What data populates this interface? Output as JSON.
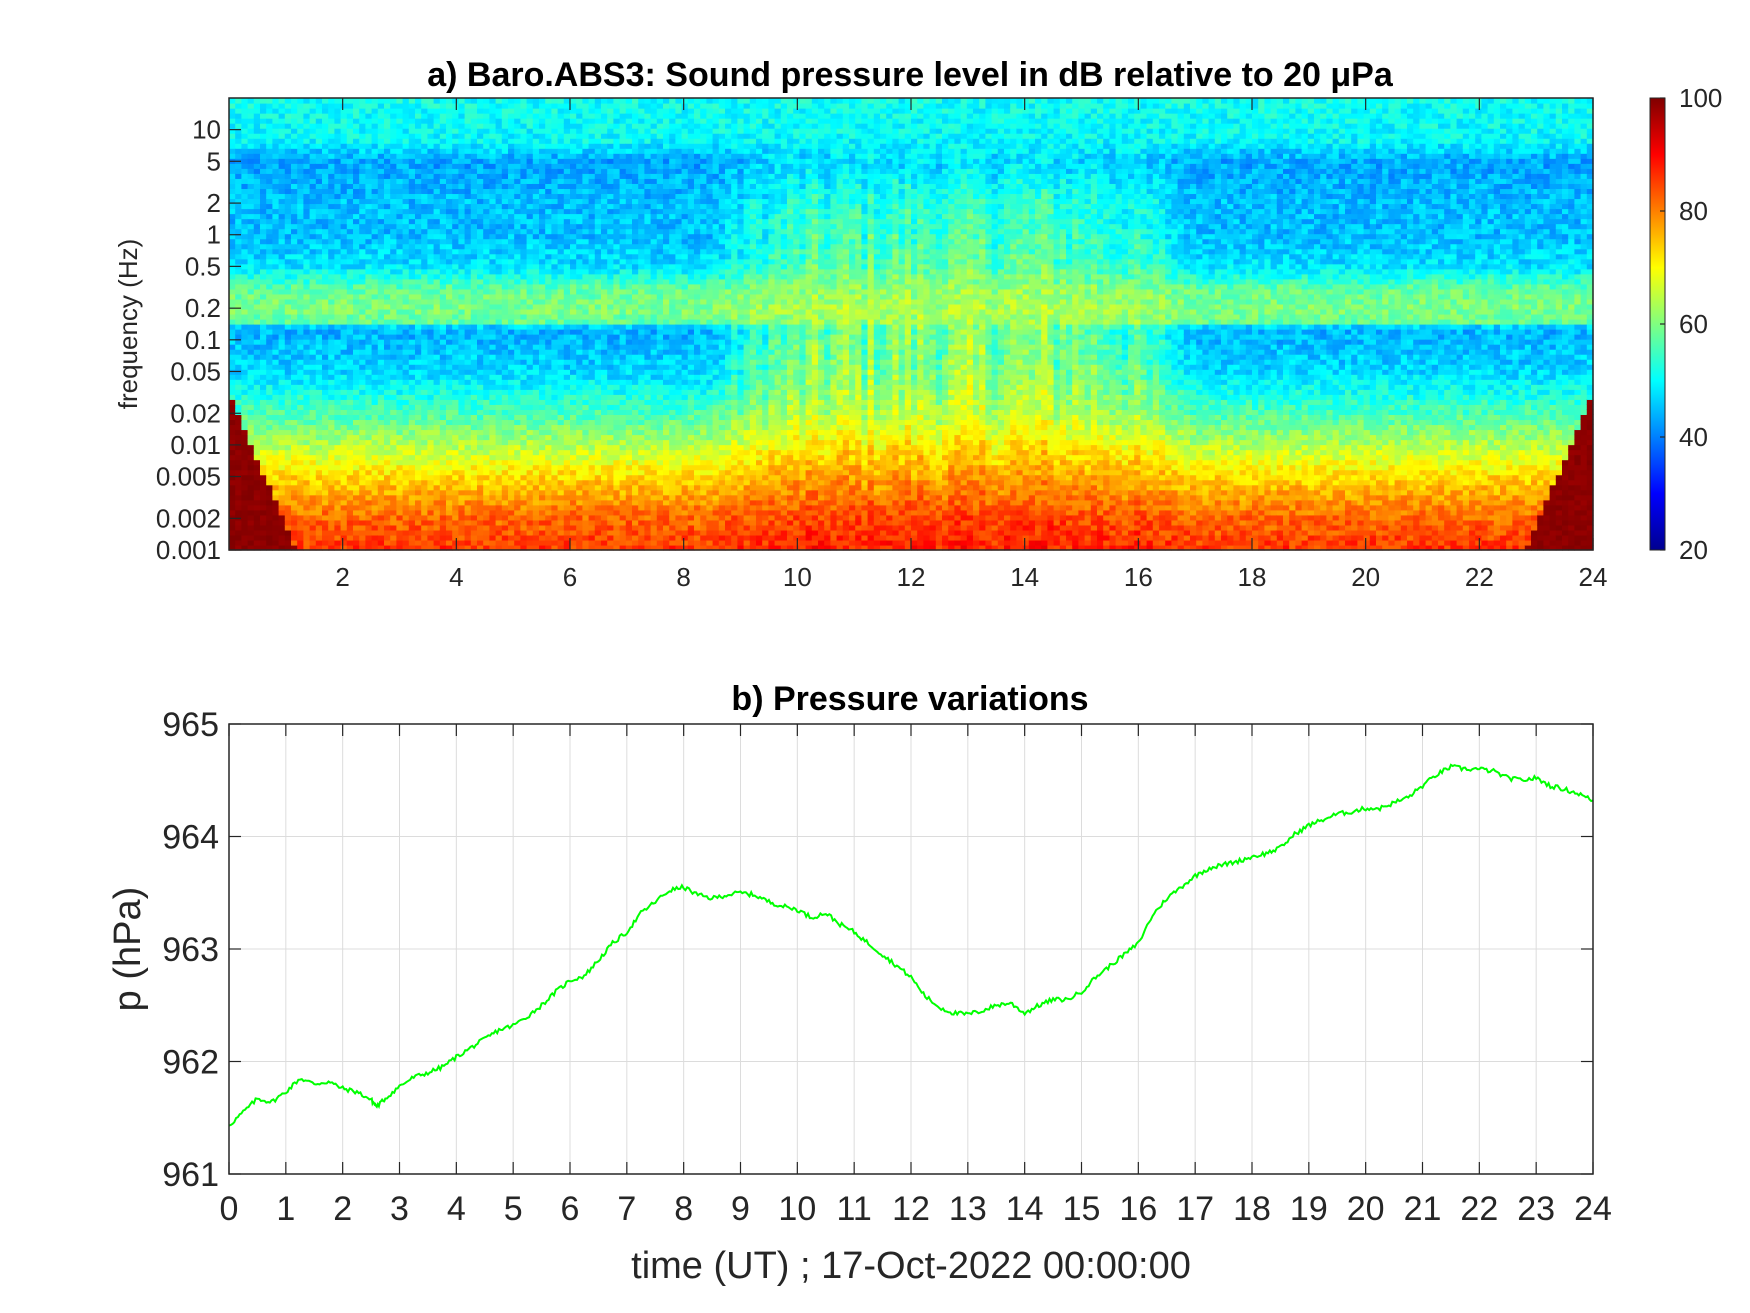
{
  "chart_data": [
    {
      "type": "heatmap",
      "title": "a) Baro.ABS3: Sound pressure level in dB relative to 20 μPa",
      "ylabel": "frequency (Hz)",
      "xlabel": "",
      "x_ticks": [
        2,
        4,
        6,
        8,
        10,
        12,
        14,
        16,
        18,
        20,
        22,
        24
      ],
      "xlim": [
        0,
        24
      ],
      "y_scale": "log",
      "ylim": [
        0.001,
        20
      ],
      "y_ticks": [
        {
          "value": 0.001,
          "label": "0.001"
        },
        {
          "value": 0.002,
          "label": "0.002"
        },
        {
          "value": 0.005,
          "label": "0.005"
        },
        {
          "value": 0.01,
          "label": "0.01"
        },
        {
          "value": 0.02,
          "label": "0.02"
        },
        {
          "value": 0.05,
          "label": "0.05"
        },
        {
          "value": 0.1,
          "label": "0.1"
        },
        {
          "value": 0.2,
          "label": "0.2"
        },
        {
          "value": 0.5,
          "label": "0.5"
        },
        {
          "value": 1,
          "label": "1"
        },
        {
          "value": 2,
          "label": "2"
        },
        {
          "value": 5,
          "label": "5"
        },
        {
          "value": 10,
          "label": "10"
        }
      ],
      "colormap": "jet",
      "colorbar": {
        "range": [
          20,
          100
        ],
        "ticks": [
          20,
          40,
          60,
          80,
          100
        ]
      },
      "colors": {
        "low": "#00008f",
        "mid": "#80ff80",
        "high": "#800000"
      },
      "profile": {
        "freq": [
          0.001,
          0.002,
          0.005,
          0.01,
          0.02,
          0.05,
          0.13,
          0.15,
          0.2,
          0.3,
          0.5,
          1,
          2,
          5,
          8,
          20
        ],
        "level_quiet": [
          86,
          82,
          73,
          64,
          56,
          47,
          44,
          58,
          60,
          58,
          48,
          45,
          45,
          43,
          50,
          51
        ],
        "level_active": [
          88,
          85,
          78,
          72,
          66,
          62,
          60,
          63,
          64,
          62,
          58,
          56,
          54,
          48,
          50,
          51
        ]
      },
      "activity_window_hours": [
        9.5,
        16
      ]
    },
    {
      "type": "line",
      "title": "b) Pressure variations",
      "xlabel": "time (UT) ; 17-Oct-2022 00:00:00",
      "ylabel": "p (hPa)",
      "xlim": [
        0,
        24
      ],
      "ylim": [
        961,
        965
      ],
      "x_ticks": [
        0,
        1,
        2,
        3,
        4,
        5,
        6,
        7,
        8,
        9,
        10,
        11,
        12,
        13,
        14,
        15,
        16,
        17,
        18,
        19,
        20,
        21,
        22,
        23,
        24
      ],
      "y_ticks": [
        961,
        962,
        963,
        964,
        965
      ],
      "grid": true,
      "colors": {
        "line": "#00ff00"
      },
      "x": [
        0,
        0.25,
        0.5,
        0.75,
        1,
        1.25,
        1.5,
        1.75,
        2,
        2.25,
        2.5,
        2.6,
        2.75,
        3,
        3.25,
        3.5,
        3.75,
        4,
        4.25,
        4.5,
        4.75,
        5,
        5.25,
        5.5,
        5.75,
        6,
        6.25,
        6.5,
        6.75,
        7,
        7.25,
        7.5,
        7.75,
        8,
        8.25,
        8.5,
        8.75,
        9,
        9.25,
        9.5,
        9.75,
        10,
        10.25,
        10.5,
        10.75,
        11,
        11.25,
        11.5,
        11.75,
        12,
        12.25,
        12.5,
        12.75,
        13,
        13.25,
        13.5,
        13.75,
        14,
        14.25,
        14.5,
        14.75,
        15,
        15.25,
        15.5,
        15.75,
        16,
        16.25,
        16.5,
        16.75,
        17,
        17.25,
        17.5,
        17.75,
        18,
        18.25,
        18.5,
        18.75,
        19,
        19.25,
        19.5,
        19.75,
        20,
        20.25,
        20.5,
        20.75,
        21,
        21.25,
        21.5,
        21.75,
        22,
        22.25,
        22.5,
        22.75,
        23,
        23.25,
        23.5,
        23.75,
        24
      ],
      "y": [
        961.43,
        961.55,
        961.67,
        961.64,
        961.73,
        961.85,
        961.8,
        961.82,
        961.76,
        961.73,
        961.66,
        961.6,
        961.67,
        961.78,
        961.86,
        961.9,
        961.95,
        962.04,
        962.12,
        962.2,
        962.28,
        962.32,
        962.4,
        962.5,
        962.62,
        962.72,
        962.76,
        962.9,
        963.05,
        963.15,
        963.32,
        963.42,
        963.52,
        963.55,
        963.48,
        963.45,
        963.48,
        963.5,
        963.48,
        963.42,
        963.38,
        963.35,
        963.28,
        963.32,
        963.22,
        963.15,
        963.05,
        962.95,
        962.85,
        962.75,
        962.58,
        962.48,
        962.43,
        962.42,
        962.45,
        962.5,
        962.52,
        962.43,
        962.5,
        962.55,
        962.55,
        962.62,
        962.75,
        962.85,
        962.95,
        963.05,
        963.3,
        963.45,
        963.55,
        963.65,
        963.72,
        963.75,
        963.78,
        963.82,
        963.85,
        963.9,
        964.02,
        964.1,
        964.15,
        964.2,
        964.22,
        964.25,
        964.25,
        964.3,
        964.35,
        964.45,
        964.55,
        964.62,
        964.6,
        964.6,
        964.58,
        964.52,
        964.5,
        964.52,
        964.45,
        964.42,
        964.38,
        964.32
      ]
    }
  ]
}
